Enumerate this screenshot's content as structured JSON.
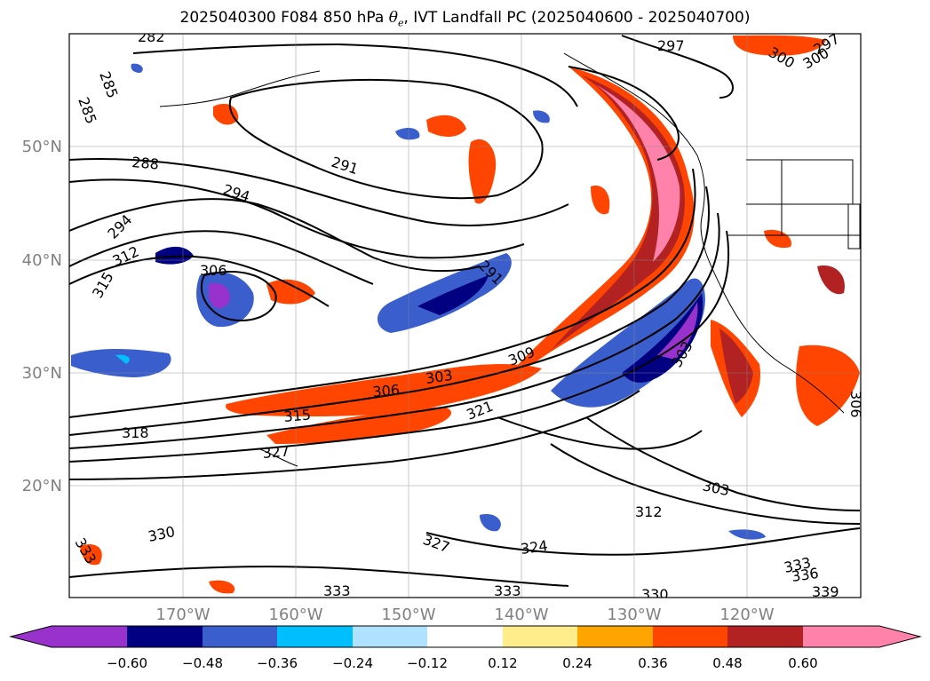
{
  "title": {
    "prefix": "2025040300 F084 850 hPa ",
    "symbol": "θ",
    "subscript": "e",
    "suffix": ", IVT Landfall PC (2025040600 - 2025040700)"
  },
  "map": {
    "lat_labels": [
      "50°N",
      "40°N",
      "30°N",
      "20°N"
    ],
    "lon_labels": [
      "170°W",
      "160°W",
      "150°W",
      "140°W",
      "130°W",
      "120°W"
    ],
    "contour_labels": [
      "282",
      "285",
      "285",
      "288",
      "291",
      "294",
      "297",
      "300",
      "300",
      "297",
      "294",
      "312",
      "315",
      "306",
      "291",
      "303",
      "309",
      "306",
      "303",
      "321",
      "315",
      "318",
      "327",
      "303",
      "312",
      "324",
      "327",
      "330",
      "333",
      "333",
      "333",
      "330",
      "333",
      "336",
      "339",
      "306"
    ]
  },
  "colorbar": {
    "tick_labels": [
      "−0.60",
      "−0.48",
      "−0.36",
      "−0.24",
      "−0.12",
      "0.12",
      "0.24",
      "0.36",
      "0.48",
      "0.60"
    ],
    "colors": [
      "#9932cc",
      "#000080",
      "#3a5fcd",
      "#00bfff",
      "#b0e2ff",
      "#ffffff",
      "#ffec8b",
      "#ffa500",
      "#ff4500",
      "#b22222",
      "#ff82ab"
    ]
  }
}
